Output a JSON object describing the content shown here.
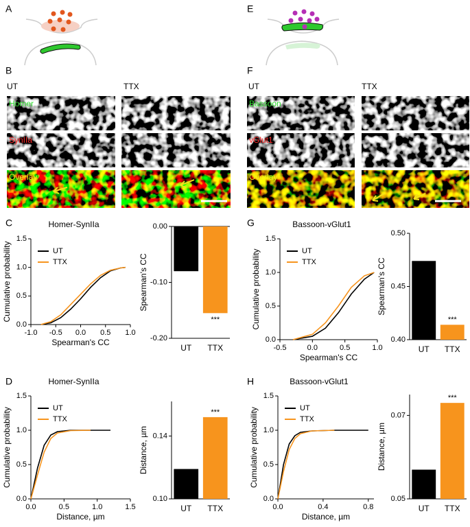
{
  "panel_letters": [
    "A",
    "B",
    "C",
    "D",
    "E",
    "F",
    "G",
    "H"
  ],
  "images": {
    "left": {
      "columns": [
        "UT",
        "TTX"
      ],
      "rows": [
        "Homer",
        "SynIIa",
        "Overlay"
      ]
    },
    "right": {
      "columns": [
        "UT",
        "TTX"
      ],
      "rows": [
        "Bassoon",
        "vGlut1",
        "Overlay"
      ]
    }
  },
  "chart_data": [
    {
      "type": "line",
      "title": "Homer-SynIIa",
      "xlabel": "Spearman's CC",
      "ylabel": "Cumulative probability",
      "x": [
        -0.8,
        -0.6,
        -0.4,
        -0.2,
        0,
        0.2,
        0.4,
        0.6,
        0.8,
        0.9
      ],
      "series": [
        {
          "name": "UT",
          "color": "#000000",
          "values": [
            0,
            0.03,
            0.12,
            0.27,
            0.45,
            0.65,
            0.82,
            0.94,
            0.99,
            1.0
          ]
        },
        {
          "name": "TTX",
          "color": "#f7941d",
          "values": [
            0,
            0.05,
            0.17,
            0.35,
            0.53,
            0.71,
            0.86,
            0.95,
            0.99,
            1.0
          ]
        }
      ],
      "xlim": [
        -1,
        1
      ],
      "xticks": [
        {
          "value": -1,
          "label": "-1.0"
        },
        {
          "value": -0.5,
          "label": "-0.5"
        },
        {
          "value": 0,
          "label": "0.0"
        },
        {
          "value": 0.5,
          "label": "0.5"
        },
        {
          "value": 1,
          "label": "1.0"
        }
      ],
      "ylim": [
        0,
        1.5
      ],
      "yticks": [
        {
          "value": 0,
          "label": "0.0"
        },
        {
          "value": 0.5,
          "label": "0.5"
        },
        {
          "value": 1,
          "label": "1.0"
        },
        {
          "value": 1.5,
          "label": "1.5"
        }
      ],
      "legend": "upper left"
    },
    {
      "type": "bar",
      "ylabel": "Spearman's CC",
      "categories": [
        "UT",
        "TTX"
      ],
      "values": [
        -0.08,
        -0.155
      ],
      "colors": [
        "#000000",
        "#f7941d"
      ],
      "ylim": [
        -0.2,
        0
      ],
      "yticks": [
        {
          "value": -0.2,
          "label": "-0.20"
        },
        {
          "value": -0.1,
          "label": "-0.10"
        },
        {
          "value": 0,
          "label": "0.00"
        }
      ],
      "annotation": "***"
    },
    {
      "type": "line",
      "title": "Bassoon-vGlut1",
      "xlabel": "Spearman's CC",
      "ylabel": "Cumulative probability",
      "x": [
        -0.3,
        0,
        0.2,
        0.4,
        0.6,
        0.8,
        0.95
      ],
      "series": [
        {
          "name": "UT",
          "color": "#000000",
          "values": [
            0,
            0.05,
            0.17,
            0.4,
            0.68,
            0.9,
            1.0
          ]
        },
        {
          "name": "TTX",
          "color": "#f7941d",
          "values": [
            0,
            0.08,
            0.25,
            0.5,
            0.78,
            0.95,
            1.0
          ]
        }
      ],
      "xlim": [
        -0.5,
        1
      ],
      "xticks": [
        {
          "value": -0.5,
          "label": "-0.5"
        },
        {
          "value": 0,
          "label": "0.0"
        },
        {
          "value": 0.5,
          "label": "0.5"
        },
        {
          "value": 1,
          "label": "1.0"
        }
      ],
      "ylim": [
        0,
        1.5
      ],
      "yticks": [
        {
          "value": 0,
          "label": "0.0"
        },
        {
          "value": 0.5,
          "label": "0.5"
        },
        {
          "value": 1,
          "label": "1.0"
        },
        {
          "value": 1.5,
          "label": "1.5"
        }
      ],
      "legend": "upper left"
    },
    {
      "type": "bar",
      "ylabel": "Spearman's CC",
      "categories": [
        "UT",
        "TTX"
      ],
      "values": [
        0.474,
        0.414
      ],
      "colors": [
        "#000000",
        "#f7941d"
      ],
      "ylim": [
        0.4,
        0.5
      ],
      "yticks": [
        {
          "value": 0.4,
          "label": "0.40"
        },
        0.45,
        {
          "value": 0.5,
          "label": "0.50"
        }
      ],
      "annotation": "***"
    },
    {
      "type": "line",
      "title": "Homer-SynIIa",
      "xlabel": "Distance, µm",
      "ylabel": "Cumulative probability",
      "x": [
        0,
        0.1,
        0.2,
        0.3,
        0.4,
        0.6,
        0.9,
        1.2
      ],
      "series": [
        {
          "name": "UT",
          "color": "#000000",
          "values": [
            0,
            0.45,
            0.78,
            0.93,
            0.98,
            1.0,
            1.0,
            1.0
          ]
        },
        {
          "name": "TTX",
          "color": "#f7941d",
          "values": [
            0,
            0.35,
            0.68,
            0.88,
            0.96,
            0.995,
            1.0,
            null
          ]
        }
      ],
      "xlim": [
        0,
        1.5
      ],
      "xticks": [
        {
          "value": 0,
          "label": "0.0"
        },
        0.5,
        {
          "value": 1,
          "label": "1.0"
        },
        1.5
      ],
      "ylim": [
        0,
        1.5
      ],
      "yticks": [
        {
          "value": 0,
          "label": "0.0"
        },
        0.5,
        {
          "value": 1,
          "label": "1.0"
        },
        1.5
      ],
      "legend": "upper left"
    },
    {
      "type": "bar",
      "ylabel": "Distance, µm",
      "categories": [
        "UT",
        "TTX"
      ],
      "values": [
        0.119,
        0.152
      ],
      "colors": [
        "#000000",
        "#f7941d"
      ],
      "ylim": [
        0.1,
        0.162
      ],
      "yticks": [
        {
          "value": 0.1,
          "label": "0.10"
        },
        0.14
      ],
      "annotation": "***"
    },
    {
      "type": "line",
      "title": "Bassoon-vGlut1",
      "xlabel": "Distance, µm",
      "ylabel": "Cumulative probability",
      "x": [
        0,
        0.05,
        0.1,
        0.15,
        0.2,
        0.3,
        0.5,
        0.8
      ],
      "series": [
        {
          "name": "UT",
          "color": "#000000",
          "values": [
            0,
            0.5,
            0.8,
            0.92,
            0.97,
            0.99,
            1.0,
            1.0
          ]
        },
        {
          "name": "TTX",
          "color": "#f7941d",
          "values": [
            0,
            0.4,
            0.72,
            0.88,
            0.95,
            0.99,
            1.0,
            null
          ]
        }
      ],
      "xlim": [
        0,
        0.85
      ],
      "xticks": [
        {
          "value": 0,
          "label": "0.0"
        },
        0.4,
        0.8
      ],
      "ylim": [
        0,
        1.5
      ],
      "yticks": [
        {
          "value": 0,
          "label": "0.0"
        },
        0.5,
        {
          "value": 1,
          "label": "1.0"
        },
        1.5
      ],
      "legend": "upper left"
    },
    {
      "type": "bar",
      "ylabel": "Distance, µm",
      "categories": [
        "UT",
        "TTX"
      ],
      "values": [
        0.057,
        0.073
      ],
      "colors": [
        "#000000",
        "#f7941d"
      ],
      "ylim": [
        0.05,
        0.075
      ],
      "yticks": [
        0.05,
        0.07
      ],
      "annotation": "***"
    }
  ]
}
